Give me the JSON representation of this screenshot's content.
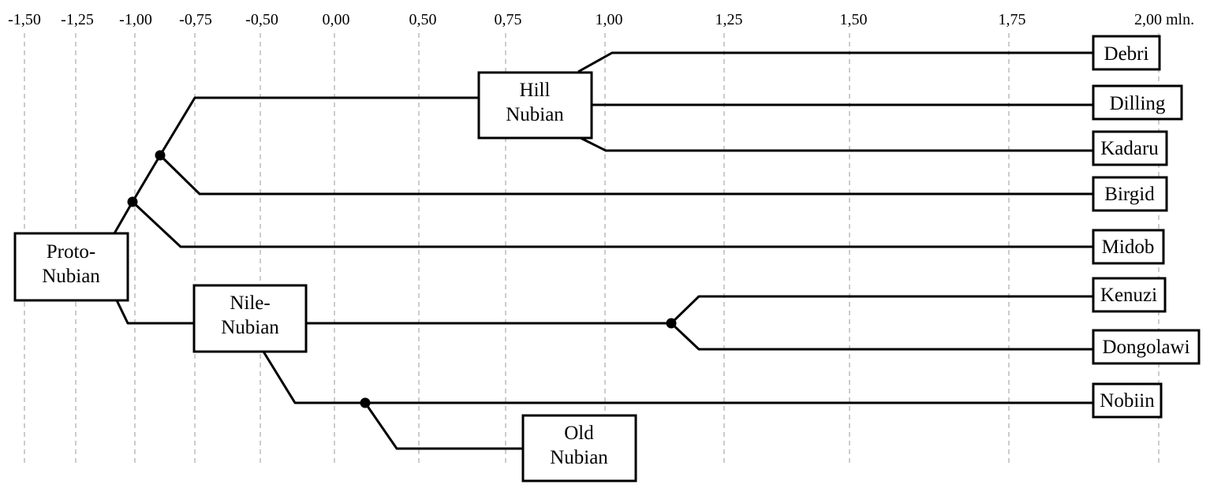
{
  "axis": {
    "ticks": [
      "-1,50",
      "-1,25",
      "-1,00",
      "-0,75",
      "-0,50",
      "0,00",
      "0,50",
      "0,75",
      "1,00",
      "1,25",
      "1,50",
      "1,75",
      "2,00 mln."
    ]
  },
  "nodes": {
    "proto_nubian": {
      "line1": "Proto-",
      "line2": "Nubian"
    },
    "hill_nubian": {
      "line1": "Hill",
      "line2": "Nubian"
    },
    "nile_nubian": {
      "line1": "Nile-",
      "line2": "Nubian"
    },
    "old_nubian": {
      "line1": "Old",
      "line2": "Nubian"
    }
  },
  "languages": {
    "debri": "Debri",
    "dilling": "Dilling",
    "kadaru": "Kadaru",
    "birgid": "Birgid",
    "midob": "Midob",
    "kenuzi": "Kenuzi",
    "dongolawi": "Dongolawi",
    "nobiin": "Nobiin"
  }
}
